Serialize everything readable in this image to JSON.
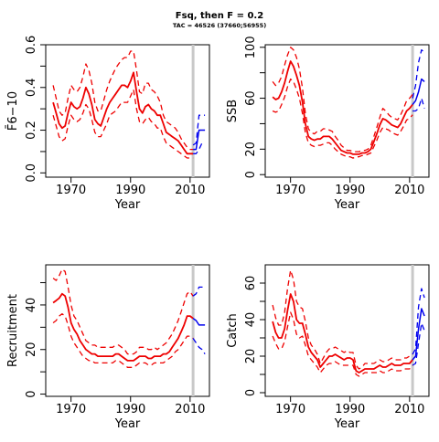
{
  "figure": {
    "title": "Fsq, then F = 0.2",
    "subtitle": "TAC = 46526 (37660;56955)"
  },
  "colors": {
    "estimate": "#ee0000",
    "forecast": "#0000ee",
    "marker": "#c8c8c8",
    "axis": "#000000"
  },
  "chart_data": [
    {
      "id": "fbar",
      "type": "line",
      "xlabel": "Year",
      "ylabel": "F̄6−10",
      "xlim": [
        1961.5,
        2016.5
      ],
      "ylim": [
        -0.02,
        0.6
      ],
      "xticks": [
        1970,
        1990,
        2010
      ],
      "yticks": [
        0.0,
        0.1,
        0.2,
        0.3,
        0.4,
        0.5,
        0.6
      ],
      "ytick_labels": [
        "0.0",
        "",
        "0.2",
        "",
        "0.4",
        "",
        "0.6"
      ],
      "vline": 2011,
      "estimate": {
        "x": [
          1964,
          1965,
          1966,
          1967,
          1968,
          1969,
          1970,
          1971,
          1972,
          1973,
          1974,
          1975,
          1976,
          1977,
          1978,
          1979,
          1980,
          1981,
          1982,
          1983,
          1984,
          1985,
          1986,
          1987,
          1988,
          1989,
          1990,
          1991,
          1992,
          1993,
          1994,
          1995,
          1996,
          1997,
          1998,
          1999,
          2000,
          2001,
          2002,
          2003,
          2004,
          2005,
          2006,
          2007,
          2008,
          2009,
          2010,
          2011
        ],
        "mid": [
          0.33,
          0.28,
          0.23,
          0.21,
          0.22,
          0.28,
          0.33,
          0.31,
          0.3,
          0.31,
          0.35,
          0.4,
          0.37,
          0.32,
          0.25,
          0.23,
          0.22,
          0.26,
          0.3,
          0.33,
          0.35,
          0.37,
          0.39,
          0.41,
          0.41,
          0.4,
          0.43,
          0.47,
          0.38,
          0.3,
          0.28,
          0.31,
          0.32,
          0.3,
          0.29,
          0.27,
          0.27,
          0.23,
          0.19,
          0.18,
          0.17,
          0.16,
          0.15,
          0.13,
          0.11,
          0.09,
          0.09,
          0.09
        ],
        "upper": [
          0.41,
          0.35,
          0.29,
          0.27,
          0.28,
          0.35,
          0.41,
          0.39,
          0.38,
          0.4,
          0.45,
          0.51,
          0.48,
          0.42,
          0.33,
          0.29,
          0.29,
          0.34,
          0.39,
          0.43,
          0.46,
          0.49,
          0.51,
          0.53,
          0.54,
          0.54,
          0.57,
          0.57,
          0.48,
          0.38,
          0.37,
          0.42,
          0.42,
          0.39,
          0.38,
          0.36,
          0.33,
          0.27,
          0.24,
          0.23,
          0.22,
          0.21,
          0.19,
          0.16,
          0.14,
          0.12,
          0.11,
          0.11
        ],
        "lower": [
          0.27,
          0.22,
          0.17,
          0.15,
          0.16,
          0.22,
          0.27,
          0.25,
          0.24,
          0.25,
          0.28,
          0.32,
          0.3,
          0.25,
          0.19,
          0.17,
          0.17,
          0.2,
          0.23,
          0.27,
          0.28,
          0.29,
          0.31,
          0.33,
          0.33,
          0.33,
          0.36,
          0.39,
          0.3,
          0.24,
          0.23,
          0.25,
          0.26,
          0.24,
          0.23,
          0.21,
          0.21,
          0.17,
          0.14,
          0.13,
          0.12,
          0.11,
          0.1,
          0.09,
          0.08,
          0.07,
          0.07,
          0.07
        ]
      },
      "forecast": {
        "x": [
          2011,
          2012,
          2013,
          2014,
          2015
        ],
        "mid": [
          0.11,
          0.11,
          0.2,
          0.2,
          0.2
        ],
        "upper": [
          0.13,
          0.14,
          0.27,
          0.27,
          0.27
        ],
        "lower": [
          0.09,
          0.09,
          0.11,
          0.14,
          0.14
        ]
      }
    },
    {
      "id": "ssb",
      "type": "line",
      "xlabel": "Year",
      "ylabel": "SSB",
      "xlim": [
        1961.5,
        2016.5
      ],
      "ylim": [
        -2,
        102
      ],
      "xticks": [
        1970,
        1990,
        2010
      ],
      "yticks": [
        0,
        20,
        40,
        60,
        80,
        100
      ],
      "ytick_labels": [
        "0",
        "20",
        "",
        "60",
        "",
        "100"
      ],
      "vline": 2011,
      "estimate": {
        "x": [
          1964,
          1965,
          1966,
          1967,
          1968,
          1969,
          1970,
          1971,
          1972,
          1973,
          1974,
          1975,
          1976,
          1977,
          1978,
          1979,
          1980,
          1981,
          1982,
          1983,
          1984,
          1985,
          1986,
          1987,
          1988,
          1989,
          1990,
          1991,
          1992,
          1993,
          1994,
          1995,
          1996,
          1997,
          1998,
          1999,
          2000,
          2001,
          2002,
          2003,
          2004,
          2005,
          2006,
          2007,
          2008,
          2009,
          2010,
          2011
        ],
        "mid": [
          61,
          59,
          60,
          65,
          72,
          81,
          89,
          85,
          78,
          70,
          57,
          40,
          30,
          28,
          27,
          28,
          28,
          30,
          30,
          30,
          28,
          25,
          22,
          19,
          18,
          17,
          17,
          16,
          16,
          16,
          17,
          17,
          18,
          20,
          26,
          32,
          39,
          44,
          43,
          41,
          39,
          38,
          37,
          40,
          45,
          50,
          52,
          55
        ],
        "upper": [
          73,
          70,
          72,
          77,
          86,
          94,
          100,
          98,
          92,
          83,
          68,
          48,
          36,
          33,
          32,
          34,
          34,
          36,
          36,
          35,
          34,
          30,
          27,
          23,
          21,
          19,
          19,
          18,
          18,
          18,
          19,
          19,
          20,
          23,
          30,
          37,
          45,
          52,
          50,
          47,
          45,
          44,
          43,
          47,
          52,
          58,
          60,
          63
        ],
        "lower": [
          50,
          49,
          50,
          55,
          61,
          69,
          75,
          73,
          67,
          60,
          48,
          33,
          25,
          23,
          22,
          23,
          23,
          24,
          25,
          25,
          23,
          20,
          18,
          16,
          15,
          14,
          14,
          13,
          14,
          14,
          15,
          15,
          16,
          17,
          22,
          27,
          33,
          37,
          36,
          35,
          33,
          32,
          31,
          34,
          38,
          43,
          44,
          47
        ]
      },
      "forecast": {
        "x": [
          2011,
          2012,
          2013,
          2014,
          2015
        ],
        "mid": [
          55,
          58,
          65,
          75,
          73
        ],
        "upper": [
          60,
          70,
          88,
          98,
          96
        ],
        "lower": [
          50,
          50,
          52,
          60,
          52
        ]
      }
    },
    {
      "id": "recruitment",
      "type": "line",
      "xlabel": "Year",
      "ylabel": "Recruitment",
      "xlim": [
        1961.5,
        2016.5
      ],
      "ylim": [
        -1,
        58
      ],
      "xticks": [
        1970,
        1990,
        2010
      ],
      "yticks": [
        0,
        10,
        20,
        30,
        40,
        50
      ],
      "ytick_labels": [
        "0",
        "",
        "20",
        "",
        "40",
        ""
      ],
      "vline": 2011,
      "estimate": {
        "x": [
          1964,
          1965,
          1966,
          1967,
          1968,
          1969,
          1970,
          1971,
          1972,
          1973,
          1974,
          1975,
          1976,
          1977,
          1978,
          1979,
          1980,
          1981,
          1982,
          1983,
          1984,
          1985,
          1986,
          1987,
          1988,
          1989,
          1990,
          1991,
          1992,
          1993,
          1994,
          1995,
          1996,
          1997,
          1998,
          1999,
          2000,
          2001,
          2002,
          2003,
          2004,
          2005,
          2006,
          2007,
          2008,
          2009,
          2010,
          2011
        ],
        "mid": [
          41,
          42,
          43,
          45,
          44,
          39,
          32,
          29,
          27,
          24,
          22,
          20,
          19,
          18,
          18,
          17,
          17,
          17,
          17,
          17,
          17,
          18,
          18,
          17,
          16,
          15,
          15,
          15,
          16,
          17,
          17,
          17,
          16,
          16,
          17,
          17,
          17,
          18,
          18,
          19,
          21,
          23,
          25,
          28,
          31,
          35,
          35,
          34
        ],
        "upper": [
          52,
          51,
          53,
          56,
          55,
          48,
          40,
          35,
          33,
          30,
          27,
          24,
          23,
          22,
          22,
          21,
          21,
          21,
          21,
          21,
          21,
          22,
          22,
          21,
          20,
          18,
          18,
          18,
          19,
          21,
          21,
          21,
          20,
          20,
          21,
          20,
          21,
          22,
          23,
          25,
          27,
          30,
          33,
          37,
          41,
          45,
          46,
          44
        ],
        "lower": [
          32,
          33,
          35,
          36,
          35,
          31,
          26,
          23,
          21,
          19,
          17,
          16,
          15,
          15,
          14,
          14,
          14,
          14,
          14,
          14,
          14,
          15,
          15,
          14,
          13,
          12,
          12,
          12,
          13,
          14,
          14,
          14,
          13,
          13,
          14,
          14,
          14,
          14,
          15,
          16,
          17,
          19,
          20,
          22,
          24,
          26,
          26,
          25
        ]
      },
      "forecast": {
        "x": [
          2011,
          2012,
          2013,
          2014,
          2015
        ],
        "mid": [
          34,
          33,
          31,
          31,
          31
        ],
        "upper": [
          44,
          45,
          48,
          48,
          48
        ],
        "lower": [
          25,
          23,
          21,
          20,
          18
        ]
      }
    },
    {
      "id": "catch",
      "type": "line",
      "xlabel": "Year",
      "ylabel": "Catch",
      "xlim": [
        1961.5,
        2016.5
      ],
      "ylim": [
        -2,
        70
      ],
      "xticks": [
        1970,
        1990,
        2010
      ],
      "yticks": [
        0,
        10,
        20,
        30,
        40,
        50,
        60
      ],
      "ytick_labels": [
        "0",
        "",
        "20",
        "",
        "40",
        "",
        "60"
      ],
      "vline": 2011,
      "estimate": {
        "x": [
          1964,
          1965,
          1966,
          1967,
          1968,
          1969,
          1970,
          1971,
          1972,
          1973,
          1974,
          1975,
          1976,
          1977,
          1978,
          1979,
          1980,
          1981,
          1982,
          1983,
          1984,
          1985,
          1986,
          1987,
          1988,
          1989,
          1990,
          1991,
          1992,
          1993,
          1994,
          1995,
          1996,
          1997,
          1998,
          1999,
          2000,
          2001,
          2002,
          2003,
          2004,
          2005,
          2006,
          2007,
          2008,
          2009,
          2010,
          2011
        ],
        "mid": [
          39,
          33,
          30,
          30,
          35,
          45,
          54,
          50,
          40,
          38,
          38,
          32,
          25,
          22,
          20,
          18,
          14,
          16,
          18,
          20,
          20,
          21,
          20,
          19,
          18,
          19,
          19,
          18,
          12,
          11,
          12,
          13,
          13,
          13,
          13,
          14,
          15,
          14,
          14,
          15,
          16,
          15,
          15,
          15,
          16,
          16,
          16,
          18
        ],
        "upper": [
          48,
          41,
          37,
          37,
          44,
          57,
          67,
          62,
          50,
          47,
          46,
          39,
          30,
          26,
          24,
          21,
          16,
          19,
          22,
          24,
          24,
          25,
          24,
          23,
          22,
          23,
          22,
          22,
          15,
          13,
          14,
          16,
          16,
          16,
          16,
          17,
          18,
          17,
          17,
          18,
          19,
          18,
          18,
          18,
          19,
          19,
          20,
          21
        ],
        "lower": [
          31,
          27,
          24,
          24,
          28,
          36,
          44,
          40,
          32,
          30,
          31,
          26,
          20,
          18,
          16,
          14,
          11,
          13,
          15,
          16,
          16,
          17,
          16,
          15,
          15,
          15,
          15,
          15,
          10,
          9,
          10,
          11,
          11,
          11,
          11,
          11,
          12,
          11,
          11,
          12,
          13,
          12,
          12,
          12,
          13,
          13,
          13,
          15
        ]
      },
      "forecast": {
        "x": [
          2011,
          2012,
          2013,
          2014,
          2015
        ],
        "mid": [
          18,
          20,
          35,
          46,
          42
        ],
        "upper": [
          21,
          24,
          47,
          57,
          52
        ],
        "lower": [
          15,
          16,
          27,
          38,
          34
        ]
      }
    }
  ]
}
